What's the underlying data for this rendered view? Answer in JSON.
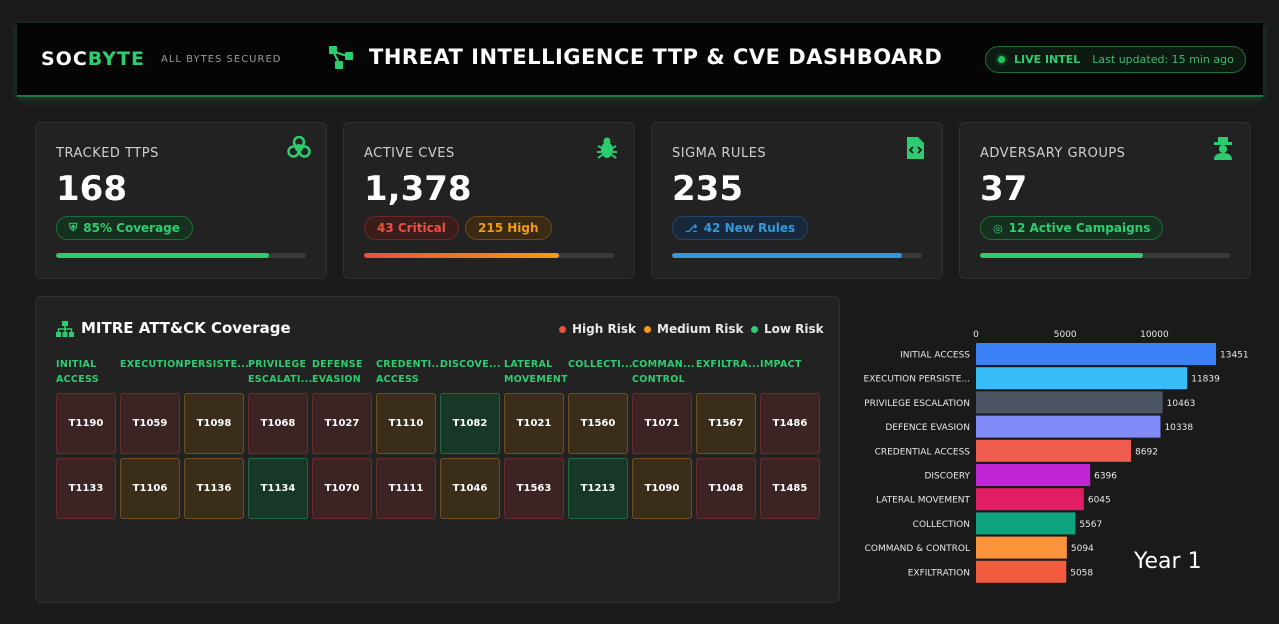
{
  "header": {
    "brand_prefix": "SOC",
    "brand_suffix": "BYTE",
    "tagline": "ALL BYTES SECURED",
    "title": "THREAT INTELLIGENCE TTP & CVE DASHBOARD",
    "live_label": "LIVE INTEL",
    "last_updated": "Last updated: 15 min ago"
  },
  "cards": [
    {
      "label": "TRACKED TTPS",
      "value": "168",
      "icon": "biohazard-icon",
      "pills": [
        {
          "text": "85% Coverage",
          "style": "green",
          "icon": "shield-icon"
        }
      ],
      "progress": 0.85,
      "bar_color": "#2ecc71"
    },
    {
      "label": "ACTIVE CVES",
      "value": "1,378",
      "icon": "bug-icon",
      "pills": [
        {
          "text": "43 Critical",
          "style": "red"
        },
        {
          "text": "215 High",
          "style": "orange"
        }
      ],
      "progress": 0.78,
      "bar_color": "#e7533f"
    },
    {
      "label": "SIGMA RULES",
      "value": "235",
      "icon": "code-file-icon",
      "pills": [
        {
          "text": "42 New Rules",
          "style": "blue",
          "icon": "branch-icon"
        }
      ],
      "progress": 0.92,
      "bar_color": "#3498db"
    },
    {
      "label": "ADVERSARY GROUPS",
      "value": "37",
      "icon": "gang-icon",
      "pills": [
        {
          "text": "12 Active Campaigns",
          "style": "green",
          "icon": "target-icon"
        }
      ],
      "progress": 0.65,
      "bar_color": "#2ecc71"
    }
  ],
  "mitre": {
    "title": "MITRE ATT&CK Coverage",
    "legend": [
      {
        "label": "High Risk",
        "color": "#e7533f"
      },
      {
        "label": "Medium Risk",
        "color": "#f39c12"
      },
      {
        "label": "Low Risk",
        "color": "#2ecc71"
      }
    ],
    "tactics": [
      {
        "line1": "INITIAL",
        "line2": "ACCESS"
      },
      {
        "line1": "EXECUTION",
        "line2": ""
      },
      {
        "line1": "PERSISTE...",
        "line2": ""
      },
      {
        "line1": "PRIVILEGE",
        "line2": "ESCALATI..."
      },
      {
        "line1": "DEFENSE",
        "line2": "EVASION"
      },
      {
        "line1": "CREDENTI...",
        "line2": "ACCESS"
      },
      {
        "line1": "DISCOVE...",
        "line2": ""
      },
      {
        "line1": "LATERAL",
        "line2": "MOVEMENT"
      },
      {
        "line1": "COLLECTI...",
        "line2": ""
      },
      {
        "line1": "COMMAN...",
        "line2": "CONTROL"
      },
      {
        "line1": "EXFILTRA...",
        "line2": ""
      },
      {
        "line1": "IMPACT",
        "line2": ""
      }
    ],
    "rows": [
      [
        {
          "id": "T1190",
          "risk": "high"
        },
        {
          "id": "T1059",
          "risk": "high"
        },
        {
          "id": "T1098",
          "risk": "medium"
        },
        {
          "id": "T1068",
          "risk": "high"
        },
        {
          "id": "T1027",
          "risk": "high"
        },
        {
          "id": "T1110",
          "risk": "medium"
        },
        {
          "id": "T1082",
          "risk": "low"
        },
        {
          "id": "T1021",
          "risk": "medium"
        },
        {
          "id": "T1560",
          "risk": "medium"
        },
        {
          "id": "T1071",
          "risk": "high"
        },
        {
          "id": "T1567",
          "risk": "medium"
        },
        {
          "id": "T1486",
          "risk": "high"
        }
      ],
      [
        {
          "id": "T1133",
          "risk": "high"
        },
        {
          "id": "T1106",
          "risk": "medium"
        },
        {
          "id": "T1136",
          "risk": "medium"
        },
        {
          "id": "T1134",
          "risk": "low"
        },
        {
          "id": "T1070",
          "risk": "high"
        },
        {
          "id": "T1111",
          "risk": "high"
        },
        {
          "id": "T1046",
          "risk": "medium"
        },
        {
          "id": "T1563",
          "risk": "high"
        },
        {
          "id": "T1213",
          "risk": "low"
        },
        {
          "id": "T1090",
          "risk": "medium"
        },
        {
          "id": "T1048",
          "risk": "high"
        },
        {
          "id": "T1485",
          "risk": "high"
        }
      ]
    ]
  },
  "chart_data": {
    "type": "bar",
    "orientation": "horizontal",
    "categories": [
      "INITIAL ACCESS",
      "EXECUTION PERSISTE...",
      "PRIVILEGE ESCALATION",
      "DEFENCE EVASION",
      "CREDENTIAL ACCESS",
      "DISCOERY",
      "LATERAL MOVEMENT",
      "COLLECTION",
      "COMMAND & CONTROL",
      "EXFILTRATION"
    ],
    "values": [
      13451,
      11839,
      10463,
      10338,
      8692,
      6396,
      6045,
      5567,
      5094,
      5058
    ],
    "colors": [
      "#3b82f6",
      "#38bdf8",
      "#4b5563",
      "#818cf8",
      "#ef5b4c",
      "#c026d3",
      "#e11d66",
      "#10a37f",
      "#fb923c",
      "#f35b3f"
    ],
    "x_ticks": [
      0,
      5000,
      10000
    ],
    "xlim": [
      0,
      14000
    ],
    "tick_position": "top",
    "annotation": "Year 1"
  }
}
